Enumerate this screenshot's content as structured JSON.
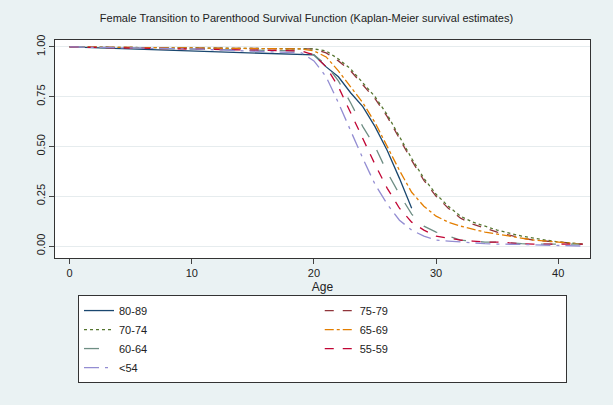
{
  "chart_data": {
    "type": "line",
    "title": "Female Transition to Parenthood Survival Function (Kaplan-Meier survival estimates)",
    "x_label": "Age",
    "x": [
      0,
      10,
      19,
      20,
      21,
      22,
      23,
      24,
      25,
      26,
      27,
      28,
      29,
      30,
      31,
      32,
      33,
      34,
      35,
      36,
      37,
      38,
      39,
      40,
      41,
      42
    ],
    "series": [
      {
        "name": "80-89",
        "color": "#1a476f",
        "line_style": "solid",
        "values": [
          1,
          0.98,
          0.96,
          0.96,
          0.9,
          0.85,
          0.77,
          0.7,
          0.6,
          0.48,
          0.34,
          0.19,
          null,
          null,
          null,
          null,
          null,
          null,
          null,
          null,
          null,
          null,
          null,
          null,
          null,
          null
        ]
      },
      {
        "name": "75-79",
        "color": "#90353b",
        "line_style": "dash",
        "values": [
          1,
          0.995,
          0.99,
          0.99,
          0.97,
          0.93,
          0.88,
          0.81,
          0.74,
          0.65,
          0.54,
          0.43,
          0.33,
          0.25,
          0.19,
          0.14,
          0.11,
          0.09,
          0.07,
          0.055,
          0.04,
          0.03,
          0.025,
          0.02,
          0.015,
          0.01
        ]
      },
      {
        "name": "70-74",
        "color": "#55752f",
        "line_style": "dot",
        "values": [
          1,
          0.995,
          0.99,
          0.99,
          0.98,
          0.94,
          0.89,
          0.82,
          0.75,
          0.66,
          0.55,
          0.44,
          0.34,
          0.26,
          0.2,
          0.15,
          0.12,
          0.1,
          0.08,
          0.065,
          0.05,
          0.04,
          0.03,
          0.02,
          0.015,
          0.01
        ]
      },
      {
        "name": "65-69",
        "color": "#e37e00",
        "line_style": "dashdot",
        "values": [
          1,
          0.995,
          0.99,
          0.98,
          0.95,
          0.88,
          0.8,
          0.72,
          0.62,
          0.5,
          0.38,
          0.27,
          0.2,
          0.15,
          0.12,
          0.1,
          0.085,
          0.07,
          0.06,
          0.05,
          0.04,
          0.03,
          0.025,
          0.02,
          0.015,
          0.01
        ]
      },
      {
        "name": "60-64",
        "color": "#6e8e84",
        "line_style": "longdash",
        "values": [
          1,
          0.99,
          0.98,
          0.96,
          0.91,
          0.83,
          0.72,
          0.6,
          0.5,
          0.37,
          0.26,
          0.16,
          0.1,
          0.07,
          0.05,
          0.03,
          0.025,
          0.02,
          0.02,
          0.015,
          0.012,
          0.01,
          0.01,
          0.01,
          0.01,
          0.01
        ]
      },
      {
        "name": "55-59",
        "color": "#c10534",
        "line_style": "dash",
        "values": [
          1,
          0.99,
          0.98,
          0.96,
          0.9,
          0.8,
          0.67,
          0.54,
          0.41,
          0.29,
          0.19,
          0.12,
          0.08,
          0.05,
          0.04,
          0.03,
          0.025,
          0.02,
          0.02,
          0.015,
          0.012,
          0.01,
          0.01,
          0.01,
          0.01,
          0.01
        ]
      },
      {
        "name": "<54",
        "color": "#938dd2",
        "line_style": "longdashdot",
        "values": [
          1,
          0.99,
          0.97,
          0.93,
          0.85,
          0.72,
          0.58,
          0.44,
          0.31,
          0.21,
          0.13,
          0.08,
          0.05,
          0.03,
          0.025,
          0.02,
          0.015,
          0.012,
          0.01,
          0.01,
          0.008,
          0.006,
          0.005,
          0.004,
          0.002,
          0
        ]
      }
    ],
    "xlim": [
      -1.2,
      42.6
    ],
    "xticks": [
      0,
      10,
      20,
      30,
      40
    ],
    "ylim": [
      -0.06,
      1.035
    ],
    "yticks": [
      {
        "value": 0,
        "label": "0.00"
      },
      {
        "value": 0.25,
        "label": "0.25"
      },
      {
        "value": 0.5,
        "label": "0.50"
      },
      {
        "value": 0.75,
        "label": "0.75"
      },
      {
        "value": 1,
        "label": "1.00"
      }
    ],
    "grid": true,
    "legend": "bottom"
  }
}
